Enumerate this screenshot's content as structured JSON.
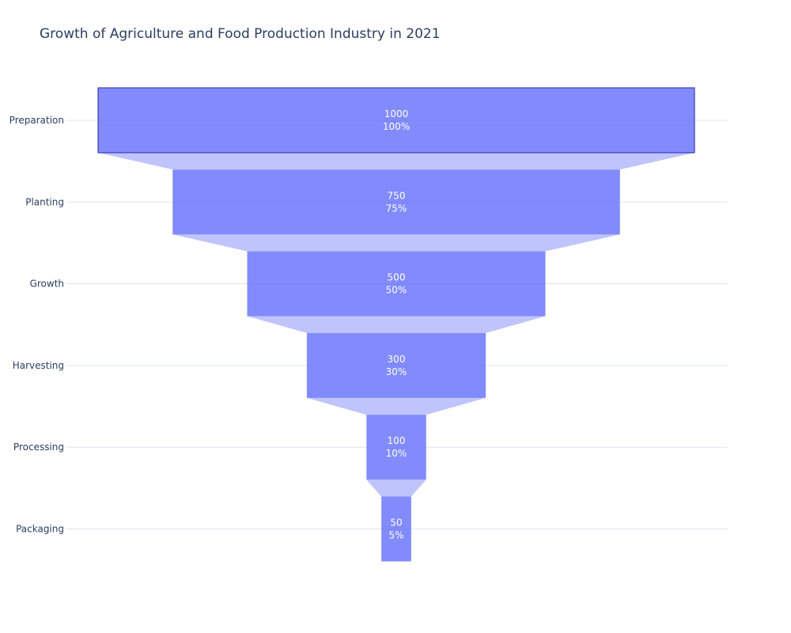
{
  "chart_data": {
    "type": "funnel",
    "title": "Growth of Agriculture and Food Production Industry in 2021",
    "categories": [
      "Preparation",
      "Planting",
      "Growth",
      "Harvesting",
      "Processing",
      "Packaging"
    ],
    "values": [
      1000,
      750,
      500,
      300,
      100,
      50
    ],
    "percent_labels": [
      "100%",
      "75%",
      "50%",
      "30%",
      "10%",
      "5%"
    ],
    "grid": true,
    "colors": {
      "bar": "#636efa",
      "bar_opacity": 0.8,
      "connector": "#c0c4fc",
      "first_bar_border": "#3b3fb8",
      "grid": "#dfe3ea",
      "text": "#2a3f5f"
    }
  }
}
